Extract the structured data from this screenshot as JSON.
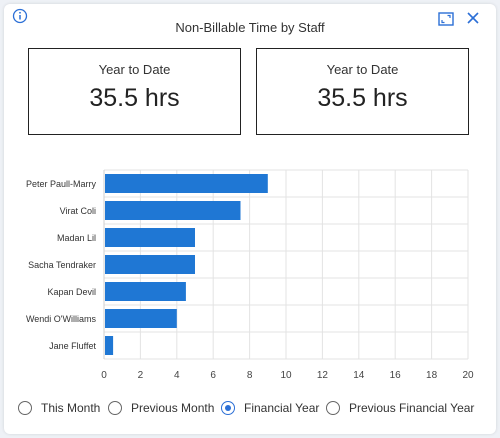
{
  "header": {
    "title": "Non-Billable Time by Staff",
    "icons": [
      "info-icon",
      "expand-icon",
      "close-icon"
    ]
  },
  "kpis": [
    {
      "label": "Year to Date",
      "value": "35.5 hrs"
    },
    {
      "label": "Year to Date",
      "value": "35.5 hrs"
    }
  ],
  "chart_data": {
    "type": "bar",
    "orientation": "horizontal",
    "categories": [
      "Peter Paull-Marry",
      "Virat Coli",
      "Madan Lil",
      "Sacha Tendraker",
      "Kapan Devil",
      "Wendi O'Williams",
      "Jane Fluffet"
    ],
    "values": [
      9,
      7.5,
      5,
      5,
      4.5,
      4,
      0.5
    ],
    "xlim": [
      0,
      20
    ],
    "xticks": [
      0,
      2,
      4,
      6,
      8,
      10,
      12,
      14,
      16,
      18,
      20
    ],
    "grid": true,
    "bar_color": "#1f77d4",
    "title": "",
    "xlabel": "",
    "ylabel": ""
  },
  "filters": {
    "options": [
      {
        "label": "This Month",
        "selected": false
      },
      {
        "label": "Previous Month",
        "selected": false
      },
      {
        "label": "Financial Year",
        "selected": true
      },
      {
        "label": "Previous Financial Year",
        "selected": false
      }
    ]
  },
  "colors": {
    "accent": "#2b6fd6",
    "bar": "#1f77d4"
  }
}
